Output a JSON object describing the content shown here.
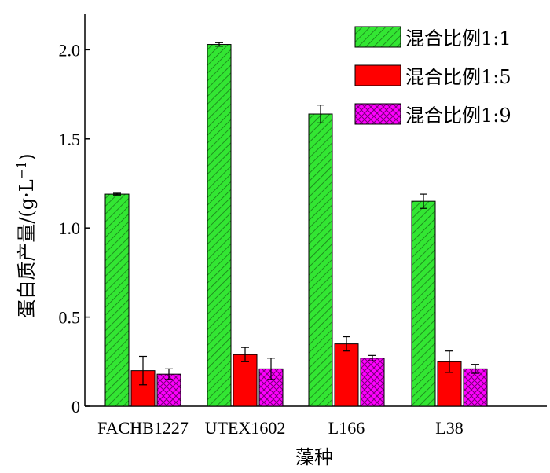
{
  "chart_data": {
    "type": "bar",
    "xlabel": "藻种",
    "ylabel": "蛋白质产量/(g·L",
    "ylabel_sup": "−1",
    "ylabel_close": ")",
    "categories": [
      "FACHB1227",
      "UTEX1602",
      "L166",
      "L38"
    ],
    "ylim": [
      0,
      2.2
    ],
    "yticks": [
      0,
      0.5,
      1.0,
      1.5,
      2.0
    ],
    "ytick_labels": [
      "0",
      "0.5",
      "1.0",
      "1.5",
      "2.0"
    ],
    "legend_position": "top-right",
    "series": [
      {
        "name": "混合比例1:1",
        "values": [
          1.19,
          2.03,
          1.64,
          1.15
        ],
        "errors": [
          0.005,
          0.01,
          0.05,
          0.04
        ],
        "color": "#33e633",
        "pattern": "diagonal-hatch"
      },
      {
        "name": "混合比例1:5",
        "values": [
          0.2,
          0.29,
          0.35,
          0.25
        ],
        "errors": [
          0.08,
          0.04,
          0.04,
          0.06
        ],
        "color": "#ff0000",
        "pattern": "solid"
      },
      {
        "name": "混合比例1:9",
        "values": [
          0.18,
          0.21,
          0.27,
          0.21
        ],
        "errors": [
          0.03,
          0.06,
          0.015,
          0.025
        ],
        "color": "#ff00ff",
        "pattern": "crosshatch"
      }
    ]
  }
}
